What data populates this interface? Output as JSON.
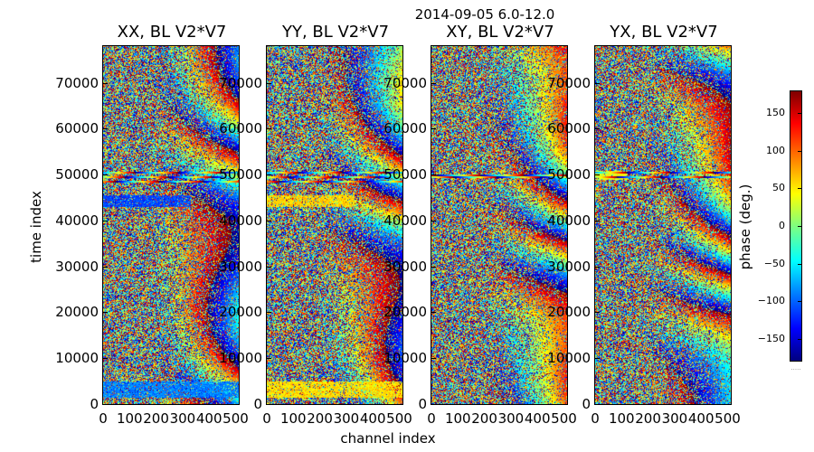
{
  "figure": {
    "suptitle": "2014-09-05 6.0-12.0",
    "xlabel": "channel index",
    "ylabel": "time index"
  },
  "colorbar": {
    "label": "phase (deg.)",
    "ticks": [
      "150",
      "100",
      "50",
      "0",
      "−50",
      "−100",
      "−150"
    ],
    "tick_values": [
      150,
      100,
      50,
      0,
      -50,
      -100,
      -150
    ],
    "range": [
      -180,
      180
    ],
    "colormap": "jet",
    "footer_text": "....."
  },
  "chart_data": {
    "type": "heatmap",
    "title": "2014-09-05 6.0-12.0",
    "xlabel": "channel index",
    "ylabel": "time index",
    "xlim": [
      0,
      512
    ],
    "ylim": [
      0,
      78000
    ],
    "x_ticks": [
      "0",
      "100",
      "200",
      "300",
      "400",
      "500"
    ],
    "y_ticks": [
      "0",
      "10000",
      "20000",
      "30000",
      "40000",
      "50000",
      "60000",
      "70000"
    ],
    "value_label": "phase (deg.)",
    "value_range": [
      -180,
      180
    ],
    "panels": [
      {
        "title": "XX, BL V2*V7",
        "feature_bands": [
          {
            "y_range": [
              43000,
              45500
            ],
            "x_range": [
              0,
              330
            ],
            "phase": -110
          },
          {
            "y_range": [
              1500,
              5000
            ],
            "x_range": [
              0,
              512
            ],
            "phase": -90
          }
        ],
        "stripe_rows": [
          48500,
          49500,
          50500
        ]
      },
      {
        "title": "YY, BL V2*V7",
        "feature_bands": [
          {
            "y_range": [
              43000,
              45500
            ],
            "x_range": [
              0,
              330
            ],
            "phase": 60
          },
          {
            "y_range": [
              1500,
              5000
            ],
            "x_range": [
              0,
              512
            ],
            "phase": 55
          }
        ],
        "stripe_rows": [
          48500,
          49500,
          50500
        ]
      },
      {
        "title": "XY, BL V2*V7",
        "feature_bands": [],
        "stripe_rows": [
          49500,
          50000
        ]
      },
      {
        "title": "YX, BL V2*V7",
        "feature_bands": [
          {
            "y_range": [
              49000,
              51000
            ],
            "x_range": [
              0,
              120
            ],
            "phase": 40
          }
        ],
        "stripe_rows": [
          49500,
          50500
        ]
      }
    ]
  }
}
